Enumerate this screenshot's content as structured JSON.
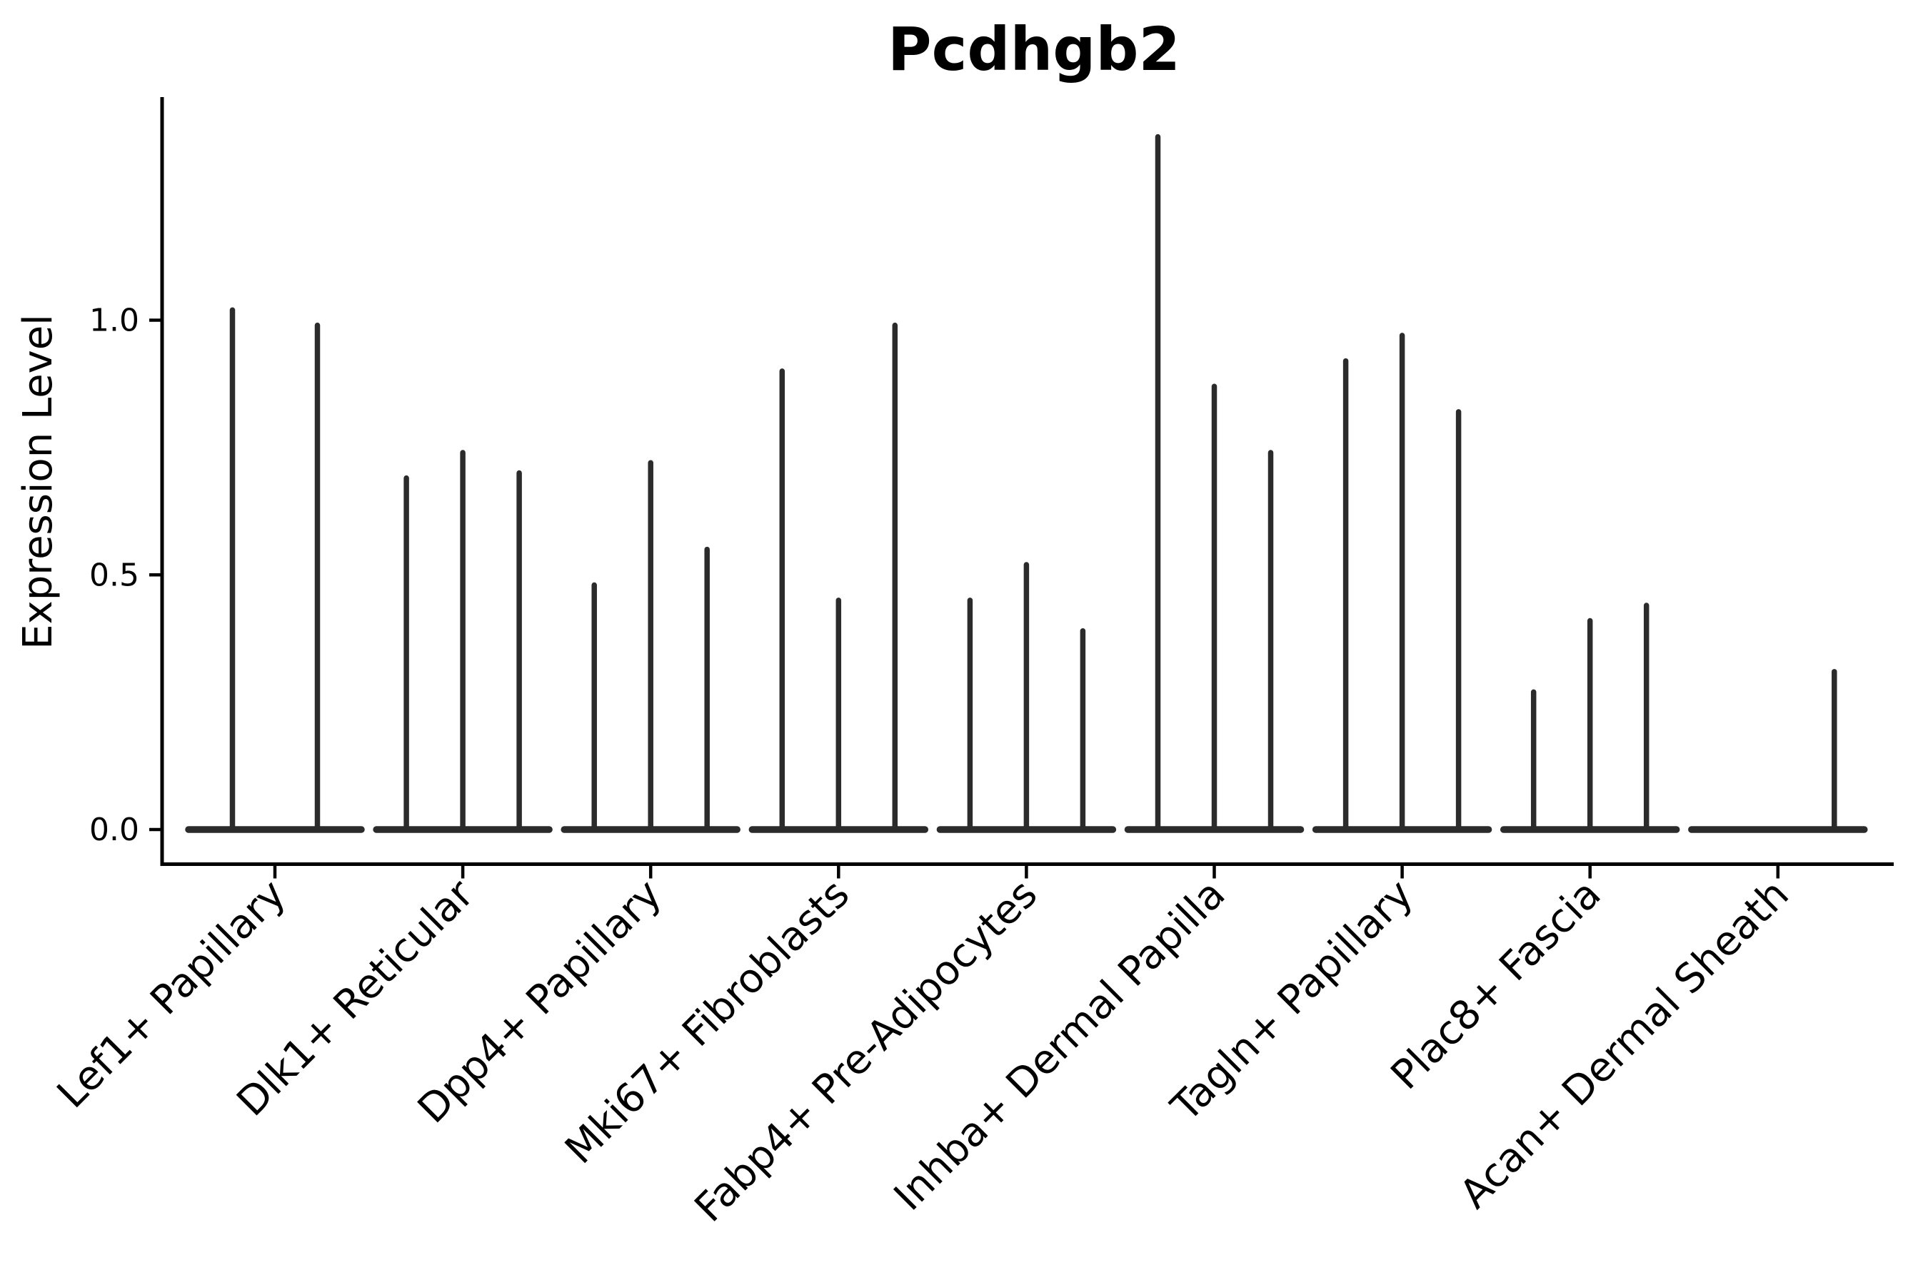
{
  "figure": {
    "title": "Pcdhgb2"
  },
  "chart_data": {
    "type": "violin",
    "title": "Pcdhgb2",
    "subtitle": "",
    "xlabel": "",
    "ylabel": "Expression Level",
    "grid": false,
    "legend": "none",
    "ylim": [
      -0.067,
      1.44
    ],
    "yticks": [
      {
        "value": 0.0,
        "label": "0.0"
      },
      {
        "value": 0.5,
        "label": "0.5"
      },
      {
        "value": 1.0,
        "label": "1.0"
      }
    ],
    "categories": [
      "Lef1+ Papillary",
      "Dlk1+ Reticular",
      "Dpp4+ Papillary",
      "Mki67+ Fibroblasts",
      "Fabp4+ Pre-Adipocytes",
      "Inhba+ Dermal Papilla",
      "Tagln+ Papillary",
      "Plac8+ Fascia",
      "Acan+ Dermal Sheath"
    ],
    "groups": [
      {
        "label": "Lef1+ Papillary",
        "violin_max_values": [
          1.02,
          0.99
        ]
      },
      {
        "label": "Dlk1+ Reticular",
        "violin_max_values": [
          0.69,
          0.74,
          0.7
        ]
      },
      {
        "label": "Dpp4+ Papillary",
        "violin_max_values": [
          0.48,
          0.72,
          0.55
        ]
      },
      {
        "label": "Mki67+ Fibroblasts",
        "violin_max_values": [
          0.9,
          0.45,
          0.99
        ]
      },
      {
        "label": "Fabp4+ Pre-Adipocytes",
        "violin_max_values": [
          0.45,
          0.52,
          0.39
        ]
      },
      {
        "label": "Inhba+ Dermal Papilla",
        "violin_max_values": [
          1.36,
          0.87,
          0.74
        ]
      },
      {
        "label": "Tagln+ Papillary",
        "violin_max_values": [
          0.92,
          0.97,
          0.82
        ]
      },
      {
        "label": "Plac8+ Fascia",
        "violin_max_values": [
          0.27,
          0.41,
          0.44
        ]
      },
      {
        "label": "Acan+ Dermal Sheath",
        "violin_max_values": [
          0.0,
          0.0,
          0.31
        ]
      }
    ],
    "style": {
      "violin_color": "#2b2b2b",
      "axis_color": "#000000",
      "background": "#ffffff"
    }
  }
}
